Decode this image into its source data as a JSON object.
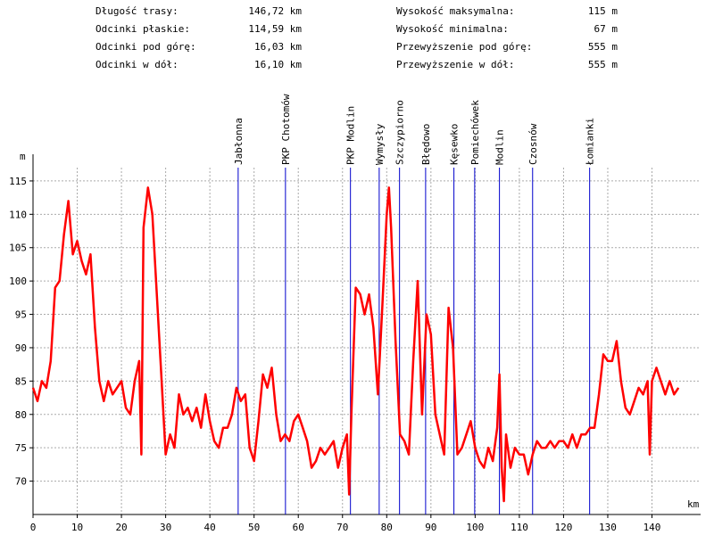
{
  "stats": {
    "left": [
      {
        "label": "Długość trasy:",
        "value": "146,72 km"
      },
      {
        "label": "Odcinki płaskie:",
        "value": "114,59 km"
      },
      {
        "label": "Odcinki pod górę:",
        "value": "16,03 km"
      },
      {
        "label": "Odcinki w dół:",
        "value": "16,10 km"
      }
    ],
    "right": [
      {
        "label": "Wysokość maksymalna:",
        "value": "115 m"
      },
      {
        "label": "Wysokość minimalna:",
        "value": "67 m"
      },
      {
        "label": "Przewyższenie pod górę:",
        "value": "555 m"
      },
      {
        "label": "Przewyższenie w dół:",
        "value": "555 m"
      }
    ]
  },
  "chart_data": {
    "type": "line",
    "y_label": "m",
    "x_label": "km",
    "color": "#ff0000",
    "marker_color": "#0000cc",
    "grid": true,
    "xlim": [
      0,
      151
    ],
    "ylim": [
      65,
      119
    ],
    "xticks": [
      0,
      10,
      20,
      30,
      40,
      50,
      60,
      70,
      80,
      90,
      100,
      110,
      120,
      130,
      140
    ],
    "yticks": [
      70,
      75,
      80,
      85,
      90,
      95,
      100,
      105,
      110,
      115
    ],
    "markers": [
      {
        "name": "Jabłonna",
        "x": 46.4
      },
      {
        "name": "PKP Chotomów",
        "x": 57.1
      },
      {
        "name": "PKP Modlin",
        "x": 71.8
      },
      {
        "name": "Wymysły",
        "x": 78.3
      },
      {
        "name": "Szczypiorno",
        "x": 82.9
      },
      {
        "name": "Błędowo",
        "x": 88.8
      },
      {
        "name": "Kęsewko",
        "x": 95.2
      },
      {
        "name": "Pomiechówek",
        "x": 99.9
      },
      {
        "name": "Modlin",
        "x": 105.5
      },
      {
        "name": "Czosnów",
        "x": 113.0
      },
      {
        "name": "Łomianki",
        "x": 125.9
      }
    ],
    "x": [
      0,
      1,
      2,
      3,
      4,
      5,
      6,
      7,
      8,
      9,
      10,
      11,
      12,
      13,
      14,
      15,
      16,
      17,
      18,
      19,
      20,
      21,
      22,
      23,
      24,
      24.5,
      25,
      26,
      27,
      28,
      29,
      30,
      31,
      32,
      33,
      34,
      35,
      36,
      37,
      38,
      39,
      40,
      41,
      42,
      43,
      44,
      45,
      46,
      47,
      48,
      49,
      50,
      51,
      52,
      53,
      54,
      55,
      56,
      57,
      58,
      59,
      60,
      61,
      62,
      63,
      64,
      65,
      66,
      67,
      68,
      69,
      70,
      71,
      71.5,
      72,
      73,
      74,
      75,
      76,
      77,
      78,
      79,
      80,
      80.5,
      81,
      82,
      83,
      84,
      85,
      86,
      87,
      88,
      89,
      90,
      91,
      92,
      93,
      94,
      95,
      96,
      97,
      98,
      99,
      100,
      101,
      102,
      103,
      104,
      105,
      105.5,
      106,
      106.5,
      107,
      108,
      109,
      110,
      111,
      112,
      113,
      114,
      115,
      116,
      117,
      118,
      119,
      120,
      121,
      122,
      123,
      124,
      125,
      126,
      127,
      128,
      129,
      130,
      131,
      132,
      133,
      134,
      135,
      136,
      137,
      138,
      139,
      139.5,
      140,
      141,
      142,
      143,
      144,
      145,
      146
    ],
    "values": [
      84,
      82,
      85,
      84,
      88,
      99,
      100,
      107,
      112,
      104,
      106,
      103,
      101,
      104,
      93,
      85,
      82,
      85,
      83,
      84,
      85,
      81,
      80,
      85,
      88,
      74,
      108,
      114,
      110,
      98,
      86,
      74,
      77,
      75,
      83,
      80,
      81,
      79,
      81,
      78,
      83,
      79,
      76,
      75,
      78,
      78,
      80,
      84,
      82,
      83,
      75,
      73,
      79,
      86,
      84,
      87,
      80,
      76,
      77,
      76,
      79,
      80,
      78,
      76,
      72,
      73,
      75,
      74,
      75,
      76,
      72,
      75,
      77,
      68,
      80,
      99,
      98,
      95,
      98,
      93,
      83,
      96,
      110,
      114,
      108,
      91,
      77,
      76,
      74,
      88,
      100,
      80,
      95,
      92,
      80,
      77,
      74,
      96,
      90,
      74,
      75,
      77,
      79,
      75,
      73,
      72,
      75,
      73,
      78,
      86,
      72,
      67,
      77,
      72,
      75,
      74,
      74,
      71,
      74,
      76,
      75,
      75,
      76,
      75,
      76,
      76,
      75,
      77,
      75,
      77,
      77,
      78,
      78,
      83,
      89,
      88,
      88,
      91,
      85,
      81,
      80,
      82,
      84,
      83,
      85,
      74,
      85,
      87,
      85,
      83,
      85,
      83,
      84
    ]
  }
}
